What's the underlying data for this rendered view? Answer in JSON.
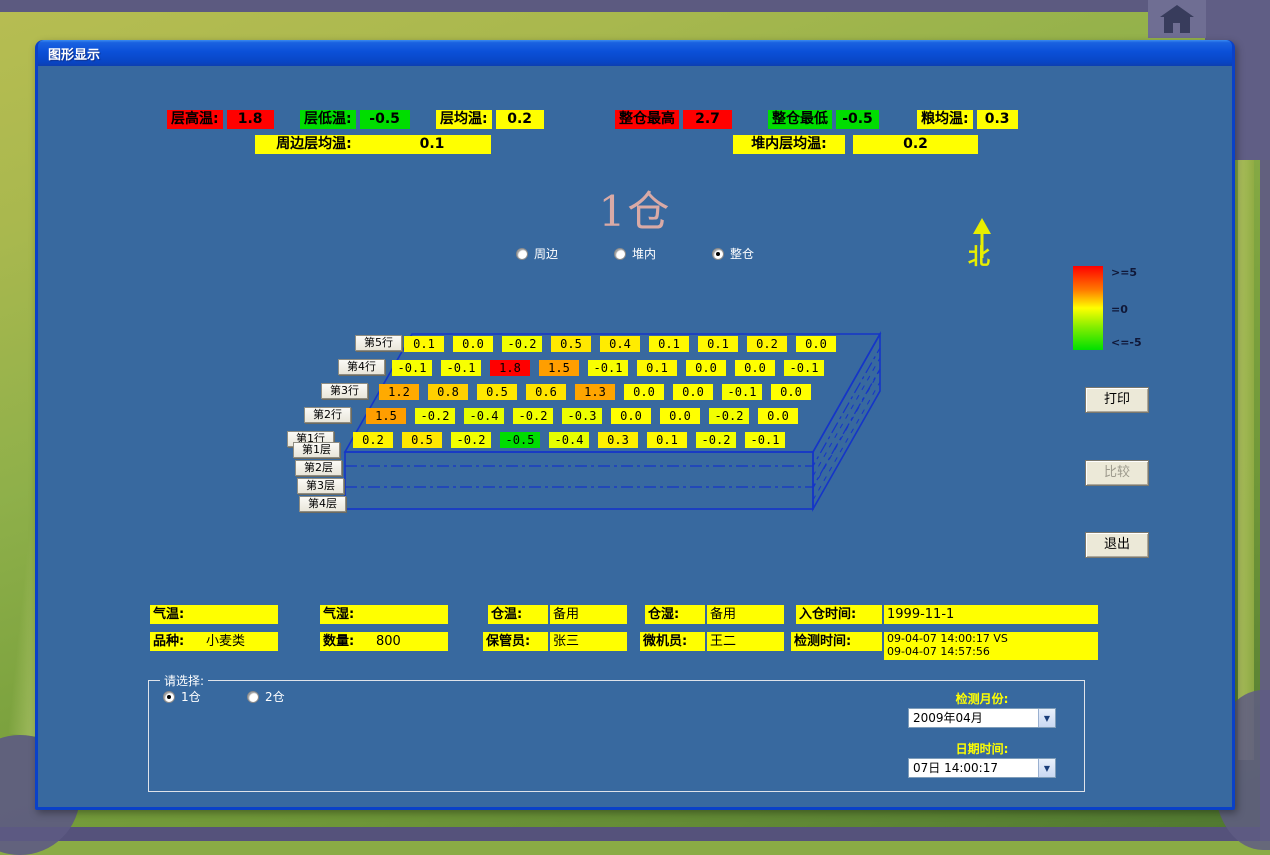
{
  "window": {
    "title": "图形显示"
  },
  "icons": {
    "home": "house-shape",
    "dropdown_arrow": "▼",
    "north_char": "北"
  },
  "stats": {
    "row1": [
      {
        "label": "层高温:",
        "value": "1.8",
        "bg": "#ff0000"
      },
      {
        "label": "层低温:",
        "value": "-0.5",
        "bg": "#00dd00"
      },
      {
        "label": "层均温:",
        "value": "0.2",
        "bg": "#ffff00"
      },
      {
        "label": "整仓最高",
        "value": "2.7",
        "bg": "#ff0000"
      },
      {
        "label": "整仓最低",
        "value": "-0.5",
        "bg": "#00dd00"
      },
      {
        "label": "粮均温:",
        "value": "0.3",
        "bg": "#ffff00"
      }
    ],
    "row2": [
      {
        "label": "周边层均温:",
        "value": "0.1",
        "bg": "#ffff00"
      },
      {
        "label": "堆内层均温:",
        "value": "0.2",
        "bg": "#ffff00"
      }
    ]
  },
  "warehouse": {
    "title": "1仓"
  },
  "view_radios": [
    {
      "label": "周边",
      "selected": false
    },
    {
      "label": "堆内",
      "selected": false
    },
    {
      "label": "整仓",
      "selected": true
    }
  ],
  "north": {
    "label": "北"
  },
  "legend": {
    "labels": [
      ">=5",
      "=0",
      "<=-5"
    ],
    "colors": [
      "#ff0000",
      "#ffff00",
      "#00e000"
    ]
  },
  "action_buttons": [
    {
      "label": "打印",
      "enabled": true
    },
    {
      "label": "比较",
      "enabled": false
    },
    {
      "label": "退出",
      "enabled": true
    }
  ],
  "diagram": {
    "row_buttons": [
      "第5行",
      "第4行",
      "第3行",
      "第2行",
      "第1行"
    ],
    "layer_buttons": [
      "第1层",
      "第2层",
      "第3层",
      "第4层"
    ],
    "grid_rows": [
      {
        "row": "第5行",
        "values": [
          "0.1",
          "0.0",
          "-0.2",
          "0.5",
          "0.4",
          "0.1",
          "0.1",
          "0.2",
          "0.0"
        ],
        "colors": [
          "#fff900",
          "#ffff00",
          "#f2ff00",
          "#ffe800",
          "#ffec00",
          "#fff900",
          "#fff900",
          "#fff400",
          "#ffff00"
        ]
      },
      {
        "row": "第4行",
        "values": [
          "-0.1",
          "-0.1",
          "1.8",
          "1.5",
          "-0.1",
          "0.1",
          "0.0",
          "0.0",
          "-0.1"
        ],
        "colors": [
          "#f8ff00",
          "#f8ff00",
          "#ff0000",
          "#ff9e00",
          "#f8ff00",
          "#fff900",
          "#ffff00",
          "#ffff00",
          "#f8ff00"
        ]
      },
      {
        "row": "第3行",
        "values": [
          "1.2",
          "0.8",
          "0.5",
          "0.6",
          "1.3",
          "0.0",
          "0.0",
          "-0.1",
          "0.0"
        ],
        "colors": [
          "#ffaa00",
          "#ffd000",
          "#ffe800",
          "#ffe400",
          "#ffa500",
          "#ffff00",
          "#ffff00",
          "#f8ff00",
          "#ffff00"
        ]
      },
      {
        "row": "第2行",
        "values": [
          "1.5",
          "-0.2",
          "-0.4",
          "-0.2",
          "-0.3",
          "0.0",
          "0.0",
          "-0.2",
          "0.0"
        ],
        "colors": [
          "#ff9e00",
          "#f2ff00",
          "#e6ff00",
          "#f2ff00",
          "#ecff00",
          "#ffff00",
          "#ffff00",
          "#f2ff00",
          "#ffff00"
        ]
      },
      {
        "row": "第1行",
        "values": [
          "0.2",
          "0.5",
          "-0.2",
          "-0.5",
          "-0.4",
          "0.3",
          "0.1",
          "-0.2",
          "-0.1"
        ],
        "colors": [
          "#fff400",
          "#ffe800",
          "#f2ff00",
          "#00dd00",
          "#e6ff00",
          "#fff000",
          "#fff900",
          "#f2ff00",
          "#f8ff00"
        ]
      }
    ]
  },
  "info_rows": {
    "row1": [
      {
        "label": "气温:",
        "value": ""
      },
      {
        "label": "气湿:",
        "value": ""
      },
      {
        "label": "仓温:",
        "value": "备用"
      },
      {
        "label": "仓湿:",
        "value": "备用"
      },
      {
        "label": "入仓时间:",
        "value": "1999-11-1"
      }
    ],
    "row2": [
      {
        "label": "品种:",
        "value": "小麦类"
      },
      {
        "label": "数量:",
        "value": "800"
      },
      {
        "label": "保管员:",
        "value": "张三"
      },
      {
        "label": "微机员:",
        "value": "王二"
      },
      {
        "label": "检测时间:",
        "value": "09-04-07  14:00:17 VS",
        "value2": "09-04-07  14:57:56"
      }
    ]
  },
  "select_panel": {
    "group_label": "请选择:",
    "warehouse_radios": [
      {
        "label": "1仓",
        "selected": true
      },
      {
        "label": "2仓",
        "selected": false
      }
    ],
    "month": {
      "label": "检测月份:",
      "value": "2009年04月"
    },
    "datetime": {
      "label": "日期时间:",
      "value": "07日  14:00:17"
    }
  }
}
